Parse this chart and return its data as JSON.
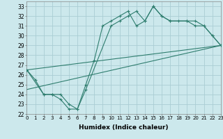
{
  "xlabel": "Humidex (Indice chaleur)",
  "bg_color": "#cce8ec",
  "line_color": "#2e7d6e",
  "grid_color": "#aacdd4",
  "line1_x": [
    0,
    1,
    2,
    3,
    4,
    5,
    6,
    7,
    8,
    9,
    10,
    11,
    12,
    13,
    14,
    15,
    16,
    17,
    18,
    19,
    20,
    21,
    22,
    23
  ],
  "line1_y": [
    26.5,
    25.5,
    24.0,
    24.0,
    23.5,
    22.5,
    22.5,
    25.0,
    27.5,
    31.0,
    31.5,
    32.0,
    32.5,
    31.0,
    31.5,
    33.0,
    32.0,
    31.5,
    31.5,
    31.5,
    31.5,
    31.0,
    30.0,
    29.0
  ],
  "line2_x": [
    0,
    2,
    3,
    4,
    5,
    6,
    7,
    10,
    11,
    12,
    13,
    14,
    15,
    16,
    17,
    19,
    20,
    21,
    22,
    23
  ],
  "line2_y": [
    26.5,
    24.0,
    24.0,
    24.0,
    23.0,
    22.5,
    24.5,
    31.0,
    31.5,
    32.0,
    32.5,
    31.5,
    33.0,
    32.0,
    31.5,
    31.5,
    31.0,
    31.0,
    30.0,
    29.0
  ],
  "line3_x": [
    0,
    23
  ],
  "line3_y": [
    24.5,
    29.0
  ],
  "line4_x": [
    0,
    23
  ],
  "line4_y": [
    26.5,
    29.0
  ],
  "xlim": [
    0,
    23
  ],
  "ylim": [
    22,
    33.5
  ],
  "xticks": [
    0,
    1,
    2,
    3,
    4,
    5,
    6,
    7,
    8,
    9,
    10,
    11,
    12,
    13,
    14,
    15,
    16,
    17,
    18,
    19,
    20,
    21,
    22,
    23
  ],
  "yticks": [
    22,
    23,
    24,
    25,
    26,
    27,
    28,
    29,
    30,
    31,
    32,
    33
  ],
  "xticklabel_fontsize": 5.0,
  "yticklabel_fontsize": 5.5,
  "xlabel_fontsize": 6.5
}
